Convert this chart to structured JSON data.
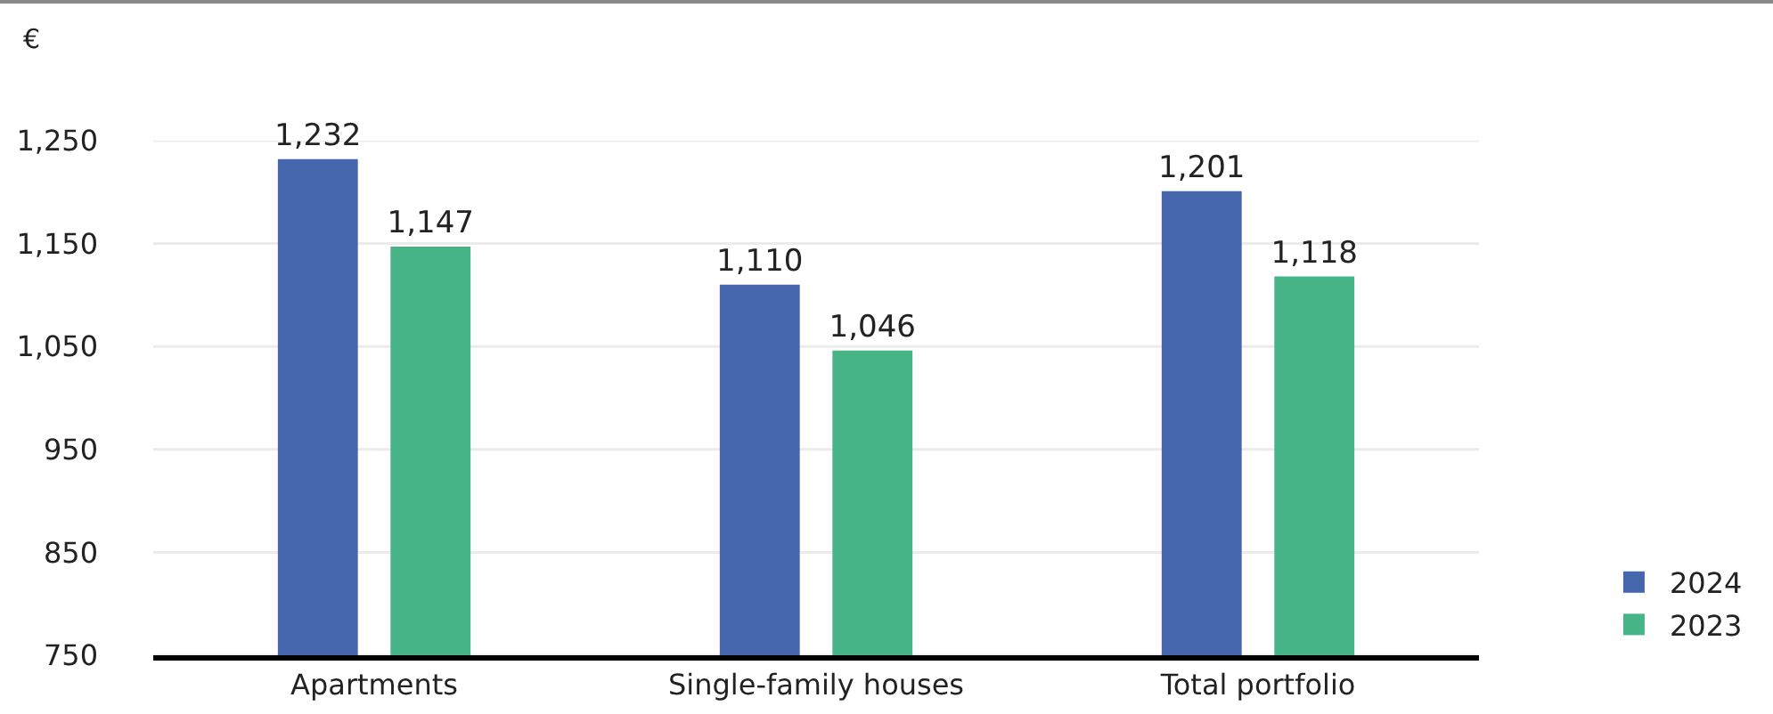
{
  "chart_data": {
    "type": "bar",
    "ylabel": "€",
    "categories": [
      "Apartments",
      "Single-family houses",
      "Total portfolio"
    ],
    "series": [
      {
        "name": "2024",
        "color": "#4566ad",
        "values": [
          1232,
          1110,
          1201
        ],
        "value_labels": [
          "1,232",
          "1,110",
          "1,201"
        ]
      },
      {
        "name": "2023",
        "color": "#46b487",
        "values": [
          1147,
          1046,
          1118
        ],
        "value_labels": [
          "1,147",
          "1,046",
          "1,118"
        ]
      }
    ],
    "ylim": [
      750,
      1250
    ],
    "yticks": [
      750,
      850,
      950,
      {
        "value": 1050,
        "label": "1,050"
      },
      {
        "value": 1150,
        "label": "1,150"
      },
      {
        "value": 1250,
        "label": "1,250"
      }
    ],
    "grid": "y",
    "legend": "bottom right"
  }
}
